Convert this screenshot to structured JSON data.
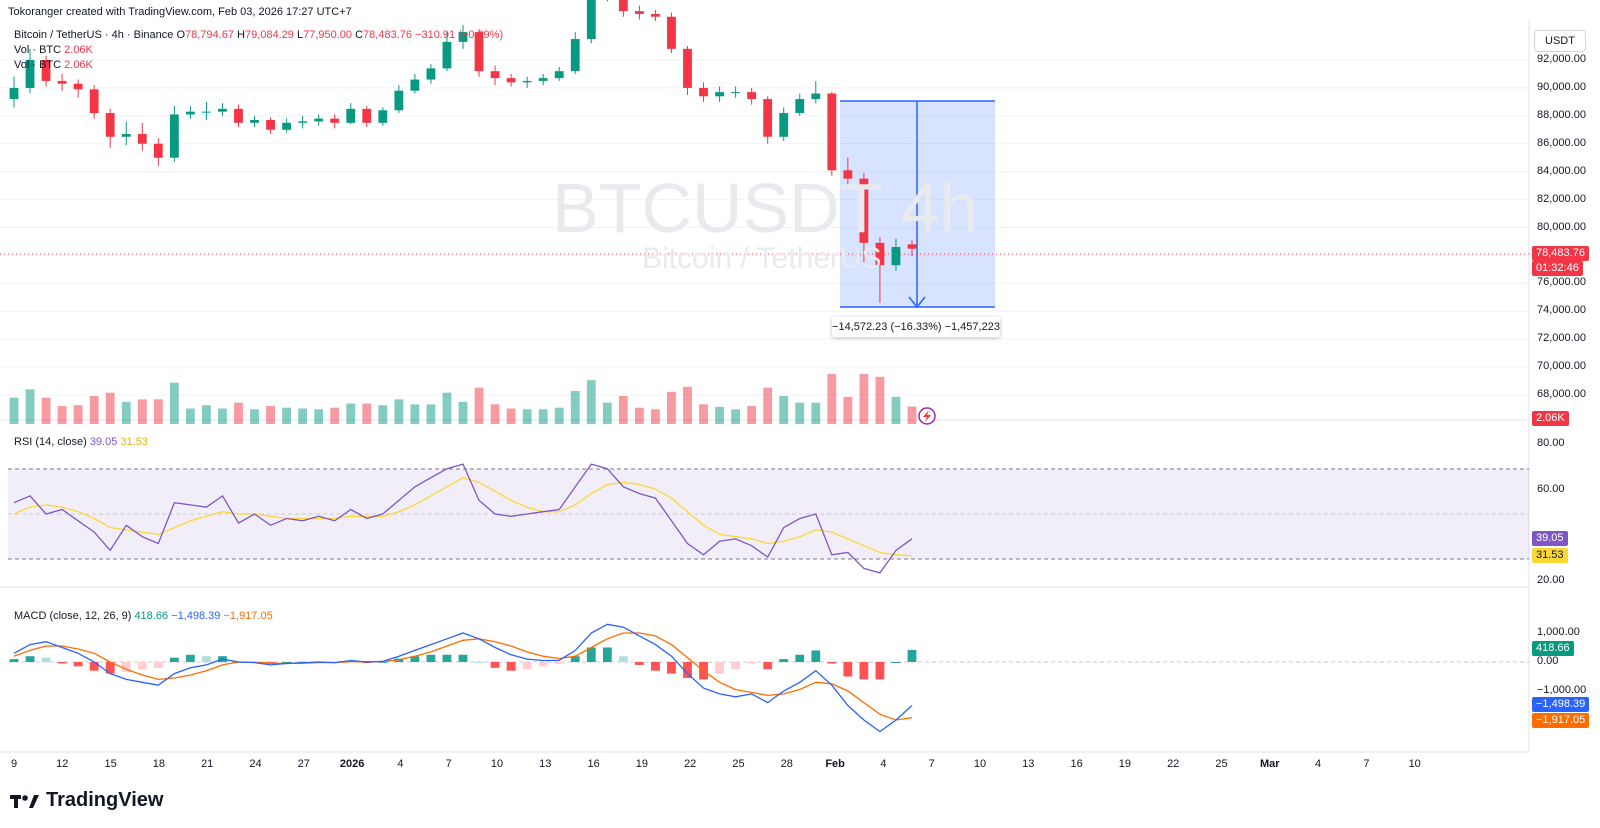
{
  "header": {
    "creator": "Tokoranger created with TradingView.com, Feb 03, 2026 17:27 UTC+7"
  },
  "legend": {
    "symbol": "Bitcoin / TetherUS · 4h · Binance",
    "open_label": "O",
    "open": "78,794.67",
    "high_label": "H",
    "high": "79,084.29",
    "low_label": "L",
    "low": "77,950.00",
    "close_label": "C",
    "close": "78,483.76",
    "change": "−310.91 (−0.39%)",
    "vol_label": "Vol · BTC",
    "vol_value": "2.06K",
    "vol2_label": "Vol · BTC",
    "vol2_value": "2.06K"
  },
  "watermark": {
    "ticker": "BTCUSDT 4h",
    "name": "Bitcoin / TetherUS"
  },
  "measure": {
    "label": "−14,572.23 (−16.33%) −1,457,223"
  },
  "currency_button": "USDT",
  "price_axis": {
    "labels": [
      "92,000.00",
      "90,000.00",
      "88,000.00",
      "86,000.00",
      "84,000.00",
      "82,000.00",
      "80,000.00",
      "76,000.00",
      "74,000.00",
      "72,000.00",
      "70,000.00",
      "68,000.00"
    ],
    "last_price": "78,483.76",
    "countdown": "01:32:46",
    "volume_tag": "2.06K"
  },
  "rsi": {
    "label": "RSI (14, close)",
    "value1": "39.05",
    "value2": "31.53",
    "axis": [
      "80.00",
      "60.00",
      "20.00"
    ]
  },
  "macd": {
    "label": "MACD (close, 12, 26, 9)",
    "hist": "418.66",
    "macd": "−1,498.39",
    "signal": "−1,917.05",
    "axis": [
      "1,000.00",
      "0.00",
      "−1,000.00"
    ]
  },
  "time_axis": [
    "9",
    "12",
    "15",
    "18",
    "21",
    "24",
    "27",
    "2026",
    "4",
    "7",
    "10",
    "13",
    "16",
    "19",
    "22",
    "25",
    "28",
    "Feb",
    "4",
    "7",
    "10",
    "13",
    "16",
    "19",
    "22",
    "25",
    "Mar",
    "4",
    "7",
    "10"
  ],
  "brand": "TradingView",
  "colors": {
    "up": "#089981",
    "down": "#f23645",
    "rsi_line": "#7e57c2",
    "rsi_ma": "#fdd835",
    "macd_line": "#2962ff",
    "signal_line": "#ff6d00",
    "measure_fill": "#2962ff"
  },
  "chart_data": [
    {
      "type": "candlestick",
      "title": "Bitcoin / TetherUS · 4h · Binance",
      "ylabel": "USDT",
      "ylim": [
        66500,
        93500
      ],
      "x": [
        "Dec 9",
        "Dec 10",
        "Dec 11",
        "Dec 12",
        "Dec 13",
        "Dec 14",
        "Dec 15",
        "Dec 16",
        "Dec 17",
        "Dec 18",
        "Dec 19",
        "Dec 20",
        "Dec 21",
        "Dec 22",
        "Dec 23",
        "Dec 24",
        "Dec 25",
        "Dec 26",
        "Dec 27",
        "Dec 28",
        "Dec 29",
        "Dec 30",
        "Dec 31",
        "Jan 1",
        "Jan 2",
        "Jan 3",
        "Jan 4",
        "Jan 5",
        "Jan 6",
        "Jan 7",
        "Jan 8",
        "Jan 9",
        "Jan 10",
        "Jan 11",
        "Jan 12",
        "Jan 13",
        "Jan 14",
        "Jan 15",
        "Jan 16",
        "Jan 17",
        "Jan 18",
        "Jan 19",
        "Jan 20",
        "Jan 21",
        "Jan 22",
        "Jan 23",
        "Jan 24",
        "Jan 25",
        "Jan 26",
        "Jan 27",
        "Jan 28",
        "Jan 29",
        "Jan 30",
        "Jan 31",
        "Feb 1",
        "Feb 2",
        "Feb 3"
      ],
      "close": [
        90000,
        92000,
        90500,
        90300,
        89900,
        88200,
        86500,
        86700,
        86000,
        85000,
        88100,
        88300,
        88300,
        88500,
        87500,
        87700,
        87000,
        87500,
        87600,
        87800,
        87500,
        88500,
        87500,
        88400,
        89800,
        90600,
        91400,
        93300,
        94000,
        91200,
        90700,
        90400,
        90500,
        90700,
        91200,
        93500,
        96800,
        97200,
        95500,
        95300,
        95100,
        92800,
        90000,
        89400,
        89700,
        89700,
        89200,
        86500,
        88200,
        89200,
        89600,
        84100,
        83500,
        78900,
        77300,
        78600,
        78484
      ],
      "open": [
        89200,
        90000,
        92000,
        90500,
        90300,
        89900,
        88200,
        86500,
        86700,
        86000,
        85000,
        88100,
        88300,
        88300,
        88500,
        87500,
        87700,
        87000,
        87500,
        87600,
        87800,
        87500,
        88500,
        87500,
        88400,
        89800,
        90600,
        91400,
        93300,
        94000,
        91200,
        90700,
        90400,
        90500,
        90700,
        91200,
        93500,
        96800,
        97200,
        95500,
        95300,
        95100,
        92800,
        90000,
        89400,
        89700,
        89700,
        89200,
        86500,
        88200,
        89200,
        89600,
        84100,
        83500,
        78900,
        77300,
        78795
      ],
      "high": [
        90800,
        92800,
        92300,
        91000,
        90600,
        90200,
        88500,
        87600,
        87500,
        86400,
        88700,
        88700,
        89000,
        88900,
        88800,
        88000,
        87900,
        87800,
        88000,
        88100,
        88100,
        88900,
        88700,
        88600,
        90200,
        91000,
        91700,
        94000,
        94500,
        94200,
        91600,
        91000,
        90800,
        91000,
        91500,
        94000,
        97500,
        97800,
        97500,
        95900,
        95600,
        95400,
        93000,
        90400,
        90100,
        90100,
        90000,
        89400,
        88600,
        89600,
        90500,
        89700,
        85000,
        83900,
        79300,
        79200,
        79084
      ],
      "low": [
        88600,
        89600,
        90100,
        89800,
        89300,
        87800,
        85700,
        85900,
        85500,
        84400,
        84700,
        87800,
        87700,
        88000,
        87200,
        87200,
        86700,
        86800,
        87100,
        87300,
        87100,
        87400,
        87200,
        87300,
        88200,
        89600,
        90300,
        91200,
        92800,
        90800,
        90200,
        90100,
        90000,
        90200,
        90500,
        91000,
        93200,
        96200,
        95100,
        94900,
        94800,
        92500,
        89500,
        89000,
        89000,
        89300,
        88800,
        86000,
        86200,
        88000,
        88900,
        83700,
        82700,
        77500,
        74600,
        76900,
        77950
      ],
      "volume_scale": "relative"
    },
    {
      "type": "line",
      "title": "RSI (14, close)",
      "ylim": [
        15,
        85
      ],
      "series": [
        {
          "name": "RSI",
          "values": [
            55,
            58,
            50,
            52,
            47,
            42,
            34,
            45,
            40,
            37,
            55,
            54,
            53,
            58,
            46,
            50,
            45,
            48,
            47,
            49,
            47,
            52,
            48,
            50,
            56,
            62,
            66,
            70,
            72,
            56,
            50,
            49,
            50,
            51,
            52,
            62,
            72,
            70,
            62,
            59,
            57,
            47,
            37,
            32,
            38,
            39,
            36,
            31,
            44,
            48,
            50,
            32,
            33,
            26,
            24,
            34,
            39.05
          ]
        },
        {
          "name": "RSI-based MA",
          "values": [
            50,
            53,
            54,
            53,
            51,
            48,
            44,
            43,
            42,
            41,
            44,
            47,
            49,
            51,
            50,
            50,
            49,
            48,
            48,
            48,
            48,
            49,
            49,
            49,
            51,
            54,
            58,
            62,
            66,
            64,
            60,
            56,
            53,
            51,
            51,
            54,
            59,
            63,
            64,
            63,
            61,
            57,
            51,
            45,
            41,
            40,
            39,
            37,
            38,
            40,
            43,
            42,
            39,
            36,
            33,
            32,
            31.53
          ]
        }
      ]
    },
    {
      "type": "line",
      "title": "MACD (close, 12, 26, 9)",
      "ylim": [
        -3000,
        2000
      ],
      "series": [
        {
          "name": "MACD",
          "values": [
            300,
            600,
            700,
            500,
            300,
            0,
            -400,
            -600,
            -700,
            -800,
            -400,
            -200,
            -100,
            100,
            0,
            -20,
            -100,
            -50,
            -30,
            0,
            -20,
            50,
            0,
            20,
            200,
            400,
            600,
            800,
            1000,
            800,
            500,
            250,
            100,
            50,
            60,
            400,
            1000,
            1300,
            1200,
            900,
            600,
            200,
            -400,
            -900,
            -1100,
            -1200,
            -1100,
            -1400,
            -1000,
            -700,
            -300,
            -800,
            -1500,
            -2000,
            -2400,
            -2000,
            -1498.39
          ]
        },
        {
          "name": "Signal",
          "values": [
            200,
            400,
            550,
            550,
            450,
            300,
            0,
            -250,
            -450,
            -600,
            -550,
            -450,
            -300,
            -100,
            0,
            -10,
            -40,
            -50,
            -40,
            -20,
            -20,
            10,
            10,
            15,
            80,
            200,
            350,
            550,
            750,
            800,
            700,
            550,
            350,
            200,
            120,
            200,
            500,
            800,
            1000,
            1000,
            900,
            600,
            150,
            -300,
            -700,
            -950,
            -1050,
            -1150,
            -1100,
            -950,
            -700,
            -750,
            -1000,
            -1400,
            -1800,
            -2000,
            -1917.05
          ]
        },
        {
          "name": "Histogram",
          "values": [
            100,
            200,
            150,
            -50,
            -150,
            -300,
            -400,
            -350,
            -250,
            -200,
            150,
            250,
            200,
            200,
            0,
            -10,
            -60,
            0,
            10,
            20,
            0,
            40,
            -10,
            5,
            120,
            200,
            250,
            250,
            250,
            0,
            -200,
            -300,
            -250,
            -150,
            -60,
            200,
            500,
            500,
            200,
            -100,
            -300,
            -400,
            -550,
            -600,
            -400,
            -250,
            -50,
            -250,
            100,
            250,
            400,
            -50,
            -500,
            -600,
            -600,
            0,
            418.66
          ]
        }
      ]
    }
  ]
}
